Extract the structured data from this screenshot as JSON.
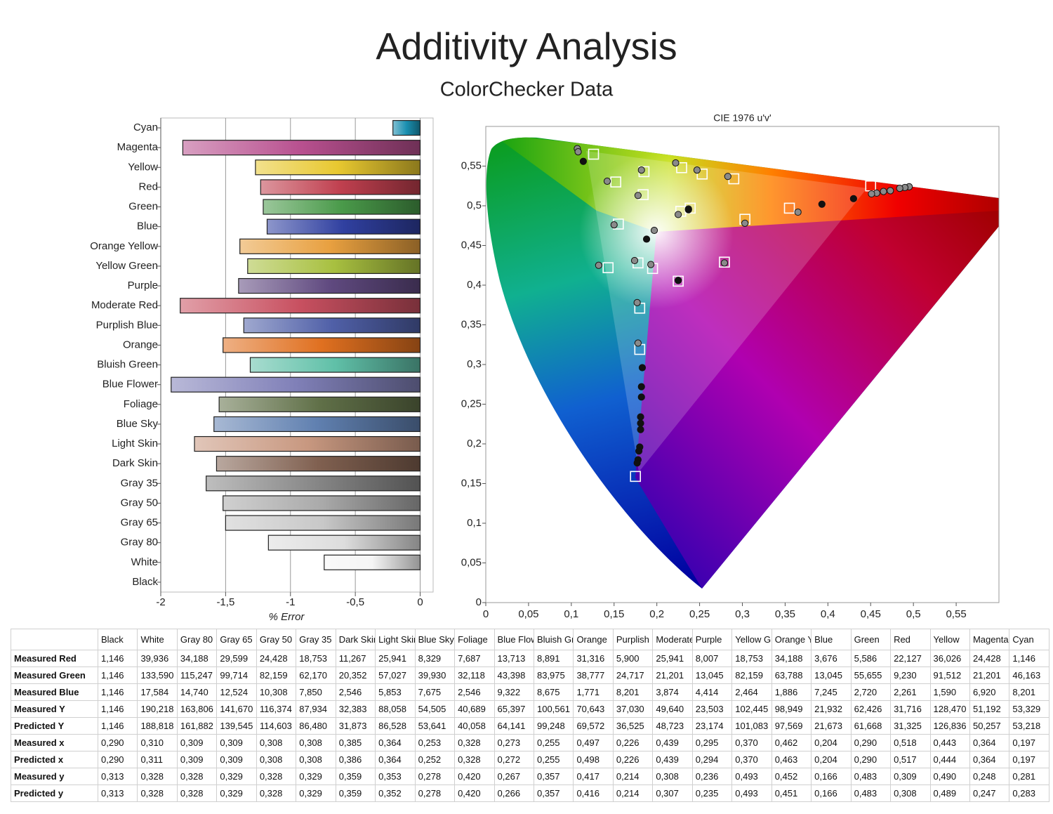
{
  "title": "Additivity Analysis",
  "subtitle": "ColorChecker Data",
  "chart_data": [
    {
      "type": "hbar",
      "categories": [
        "Cyan",
        "Magenta",
        "Yellow",
        "Red",
        "Green",
        "Blue",
        "Orange Yellow",
        "Yellow Green",
        "Purple",
        "Moderate Red",
        "Purplish Blue",
        "Orange",
        "Bluish Green",
        "Blue Flower",
        "Foliage",
        "Blue Sky",
        "Light Skin",
        "Dark Skin",
        "Gray 35",
        "Gray 50",
        "Gray 65",
        "Gray 80",
        "White",
        "Black"
      ],
      "values": [
        -0.21,
        -1.83,
        -1.27,
        -1.23,
        -1.21,
        -1.18,
        -1.39,
        -1.33,
        -1.4,
        -1.85,
        -1.36,
        -1.52,
        -1.31,
        -1.92,
        -1.55,
        -1.59,
        -1.74,
        -1.57,
        -1.65,
        -1.52,
        -1.5,
        -1.17,
        -0.74,
        0
      ],
      "colors": [
        "#1a8fb0",
        "#b8508f",
        "#e8c830",
        "#c0404f",
        "#4a9a4a",
        "#3040a0",
        "#e8a040",
        "#a8c040",
        "#604a80",
        "#c85060",
        "#5060a8",
        "#e07020",
        "#60c0a8",
        "#8080b8",
        "#607048",
        "#6080b0",
        "#c89880",
        "#806050",
        "#888888",
        "#aaaaaa",
        "#c8c8c8",
        "#dddddd",
        "#f5f5f5",
        "#222222"
      ],
      "xlim": [
        -2,
        0.1
      ],
      "xticks": [
        -2,
        {
          "value": -1.5,
          "label": "-1,5"
        },
        -1,
        {
          "value": -0.5,
          "label": "-0,5"
        },
        0
      ],
      "xlabel": "% Error",
      "grid": true
    },
    {
      "type": "scatter",
      "title": "CIE 1976 u'v'",
      "xlim": [
        0,
        0.6
      ],
      "ylim": [
        0,
        0.6
      ],
      "xticks": [
        0,
        {
          "value": 0.05,
          "label": "0,05"
        },
        {
          "value": 0.1,
          "label": "0,1"
        },
        {
          "value": 0.15,
          "label": "0,15"
        },
        {
          "value": 0.2,
          "label": "0,2"
        },
        {
          "value": 0.25,
          "label": "0,25"
        },
        {
          "value": 0.3,
          "label": "0,3"
        },
        {
          "value": 0.35,
          "label": "0,35"
        },
        {
          "value": 0.4,
          "label": "0,4"
        },
        {
          "value": 0.45,
          "label": "0,45"
        },
        {
          "value": 0.5,
          "label": "0,5"
        },
        {
          "value": 0.55,
          "label": "0,55"
        }
      ],
      "yticks": [
        0,
        {
          "value": 0.05,
          "label": "0,05"
        },
        {
          "value": 0.1,
          "label": "0,1"
        },
        {
          "value": 0.15,
          "label": "0,15"
        },
        {
          "value": 0.2,
          "label": "0,2"
        },
        {
          "value": 0.25,
          "label": "0,25"
        },
        {
          "value": 0.3,
          "label": "0,3"
        },
        {
          "value": 0.35,
          "label": "0,35"
        },
        {
          "value": 0.4,
          "label": "0,4"
        },
        {
          "value": 0.45,
          "label": "0,45"
        },
        {
          "value": 0.5,
          "label": "0,5"
        },
        {
          "value": 0.55,
          "label": "0,55"
        }
      ],
      "series": [
        {
          "marker": "square",
          "color": "#ffffff",
          "x": [
            0.126,
            0.229,
            0.253,
            0.29,
            0.185,
            0.152,
            0.184,
            0.155,
            0.228,
            0.239,
            0.355,
            0.303,
            0.45,
            0.143,
            0.178,
            0.195,
            0.279,
            0.225,
            0.18,
            0.18,
            0.175
          ],
          "values": [
            0.565,
            0.548,
            0.54,
            0.534,
            0.543,
            0.53,
            0.514,
            0.477,
            0.493,
            0.497,
            0.497,
            0.483,
            0.525,
            0.422,
            0.428,
            0.421,
            0.429,
            0.405,
            0.371,
            0.319,
            0.159
          ]
        },
        {
          "marker": "circle",
          "color": "#8a8a8a",
          "x": [
            0.107,
            0.108,
            0.222,
            0.247,
            0.283,
            0.182,
            0.142,
            0.178,
            0.15,
            0.225,
            0.237,
            0.365,
            0.303,
            0.495,
            0.49,
            0.484,
            0.473,
            0.465,
            0.457,
            0.451,
            0.197,
            0.132,
            0.174,
            0.193,
            0.279,
            0.225,
            0.177,
            0.178
          ],
          "values": [
            0.572,
            0.568,
            0.554,
            0.545,
            0.537,
            0.545,
            0.531,
            0.513,
            0.476,
            0.489,
            0.496,
            0.492,
            0.478,
            0.524,
            0.523,
            0.522,
            0.519,
            0.518,
            0.516,
            0.515,
            0.469,
            0.425,
            0.431,
            0.426,
            0.428,
            0.406,
            0.378,
            0.327
          ]
        },
        {
          "marker": "dot",
          "color": "#111111",
          "x": [
            0.114,
            0.188,
            0.393,
            0.43,
            0.237,
            0.225,
            0.183,
            0.182,
            0.182,
            0.181,
            0.181,
            0.181,
            0.18,
            0.179,
            0.178,
            0.177
          ],
          "values": [
            0.556,
            0.458,
            0.502,
            0.509,
            0.495,
            0.406,
            0.296,
            0.272,
            0.259,
            0.234,
            0.226,
            0.218,
            0.196,
            0.191,
            0.18,
            0.176
          ]
        }
      ]
    }
  ],
  "table": {
    "columns": [
      "Black",
      "White",
      "Gray 80",
      "Gray 65",
      "Gray 50",
      "Gray 35",
      "Dark Skin",
      "Light Skin",
      "Blue Sky",
      "Foliage",
      "Blue Flowe",
      "Bluish Gre",
      "Orange",
      "Purplish Bl",
      "Moderate",
      "Purple",
      "Yellow Gre",
      "Orange Ye",
      "Blue",
      "Green",
      "Red",
      "Yellow",
      "Magenta",
      "Cyan"
    ],
    "rows": [
      [
        "Measured Red",
        "1,146",
        "39,936",
        "34,188",
        "29,599",
        "24,428",
        "18,753",
        "11,267",
        "25,941",
        "8,329",
        "7,687",
        "13,713",
        "8,891",
        "31,316",
        "5,900",
        "25,941",
        "8,007",
        "18,753",
        "34,188",
        "3,676",
        "5,586",
        "22,127",
        "36,026",
        "24,428",
        "1,146"
      ],
      [
        "Measured Green",
        "1,146",
        "133,590",
        "115,247",
        "99,714",
        "82,159",
        "62,170",
        "20,352",
        "57,027",
        "39,930",
        "32,118",
        "43,398",
        "83,975",
        "38,777",
        "24,717",
        "21,201",
        "13,045",
        "82,159",
        "63,788",
        "13,045",
        "55,655",
        "9,230",
        "91,512",
        "21,201",
        "46,163"
      ],
      [
        "Measured Blue",
        "1,146",
        "17,584",
        "14,740",
        "12,524",
        "10,308",
        "7,850",
        "2,546",
        "5,853",
        "7,675",
        "2,546",
        "9,322",
        "8,675",
        "1,771",
        "8,201",
        "3,874",
        "4,414",
        "2,464",
        "1,886",
        "7,245",
        "2,720",
        "2,261",
        "1,590",
        "6,920",
        "8,201"
      ],
      [
        "Measured Y",
        "1,146",
        "190,218",
        "163,806",
        "141,670",
        "116,374",
        "87,934",
        "32,383",
        "88,058",
        "54,505",
        "40,689",
        "65,397",
        "100,561",
        "70,643",
        "37,030",
        "49,640",
        "23,503",
        "102,445",
        "98,949",
        "21,932",
        "62,426",
        "31,716",
        "128,470",
        "51,192",
        "53,329"
      ],
      [
        "Predicted Y",
        "1,146",
        "188,818",
        "161,882",
        "139,545",
        "114,603",
        "86,480",
        "31,873",
        "86,528",
        "53,641",
        "40,058",
        "64,141",
        "99,248",
        "69,572",
        "36,525",
        "48,723",
        "23,174",
        "101,083",
        "97,569",
        "21,673",
        "61,668",
        "31,325",
        "126,836",
        "50,257",
        "53,218"
      ],
      [
        "Measured x",
        "0,290",
        "0,310",
        "0,309",
        "0,309",
        "0,308",
        "0,308",
        "0,385",
        "0,364",
        "0,253",
        "0,328",
        "0,273",
        "0,255",
        "0,497",
        "0,226",
        "0,439",
        "0,295",
        "0,370",
        "0,462",
        "0,204",
        "0,290",
        "0,518",
        "0,443",
        "0,364",
        "0,197"
      ],
      [
        "Predicted x",
        "0,290",
        "0,311",
        "0,309",
        "0,309",
        "0,308",
        "0,308",
        "0,386",
        "0,364",
        "0,252",
        "0,328",
        "0,272",
        "0,255",
        "0,498",
        "0,226",
        "0,439",
        "0,294",
        "0,370",
        "0,463",
        "0,204",
        "0,290",
        "0,517",
        "0,444",
        "0,364",
        "0,197"
      ],
      [
        "Measured y",
        "0,313",
        "0,328",
        "0,328",
        "0,329",
        "0,328",
        "0,329",
        "0,359",
        "0,353",
        "0,278",
        "0,420",
        "0,267",
        "0,357",
        "0,417",
        "0,214",
        "0,308",
        "0,236",
        "0,493",
        "0,452",
        "0,166",
        "0,483",
        "0,309",
        "0,490",
        "0,248",
        "0,281"
      ],
      [
        "Predicted y",
        "0,313",
        "0,328",
        "0,328",
        "0,329",
        "0,328",
        "0,329",
        "0,359",
        "0,352",
        "0,278",
        "0,420",
        "0,266",
        "0,357",
        "0,416",
        "0,214",
        "0,307",
        "0,235",
        "0,493",
        "0,451",
        "0,166",
        "0,483",
        "0,308",
        "0,489",
        "0,247",
        "0,283"
      ]
    ]
  }
}
